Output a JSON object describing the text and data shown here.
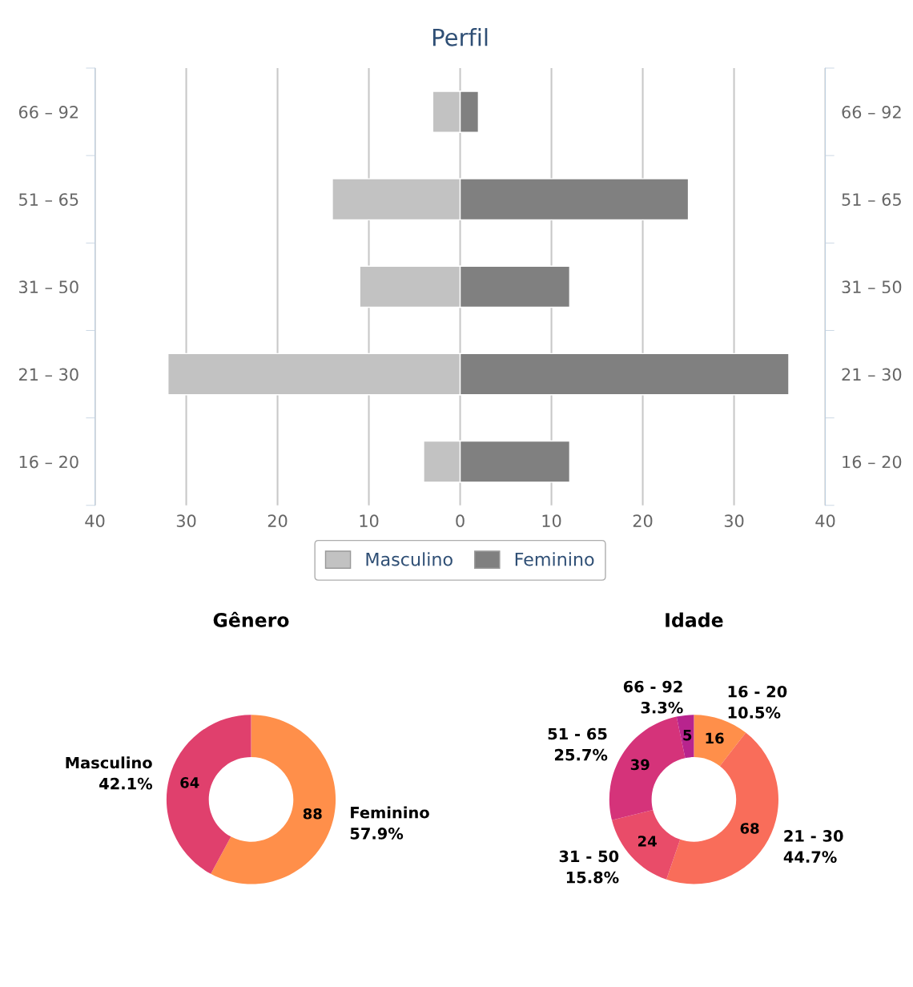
{
  "chart_data": [
    {
      "type": "bar",
      "orientation": "horizontal",
      "title": "Perfil",
      "categories": [
        "66 – 92",
        "51 – 65",
        "31 – 50",
        "21 – 30",
        "16 – 20"
      ],
      "series": [
        {
          "name": "Masculino",
          "color": "#c2c2c2",
          "values": [
            -3,
            -14,
            -11,
            -32,
            -4
          ]
        },
        {
          "name": "Feminino",
          "color": "#808080",
          "values": [
            2,
            25,
            12,
            36,
            12
          ]
        }
      ],
      "xlim": [
        -40,
        40
      ],
      "xticks": [
        {
          "value": -40,
          "label": "40"
        },
        {
          "value": -30,
          "label": "30"
        },
        {
          "value": -20,
          "label": "20"
        },
        {
          "value": -10,
          "label": "10"
        },
        0,
        10,
        20,
        30,
        40
      ],
      "grid": "x",
      "legend": "bottom",
      "stacked": true
    },
    {
      "type": "donut",
      "title": "Gênero",
      "categories": [
        "Feminino",
        "Masculino"
      ],
      "values": [
        88,
        64
      ],
      "colors": [
        "#ff8f4a",
        "#e0406d"
      ],
      "value_labels": [
        "88",
        "64"
      ],
      "annotations": [
        "57.9%",
        "42.1%"
      ]
    },
    {
      "type": "donut",
      "title": "Idade",
      "categories": [
        "16 - 20",
        "21 - 30",
        "31 - 50",
        "51 - 65",
        "66 - 92"
      ],
      "values": [
        16,
        68,
        24,
        39,
        5
      ],
      "colors": [
        "#ff8f4a",
        "#f96d5a",
        "#e94c69",
        "#d5337a",
        "#b8248e"
      ],
      "value_labels": [
        "16",
        "68",
        "24",
        "39",
        "5"
      ],
      "annotations": [
        "10.5%",
        "44.7%",
        "15.8%",
        "25.7%",
        "3.3%"
      ]
    }
  ]
}
